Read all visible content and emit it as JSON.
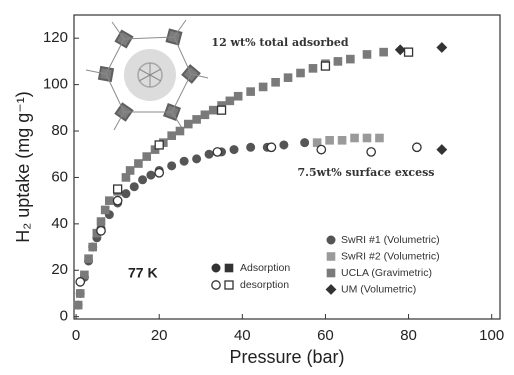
{
  "chart_data": {
    "type": "scatter",
    "xlabel": "Pressure (bar)",
    "ylabel": "H₂ uptake (mg g⁻¹)",
    "annotations": [
      "12 wt% total adsorbed",
      "7.5wt% surface excess",
      "77 K"
    ],
    "xlim": [
      -0.5,
      102
    ],
    "ylim": [
      -1,
      130
    ],
    "xticks": [
      0,
      20,
      40,
      60,
      80,
      100
    ],
    "yticks": [
      0,
      20,
      40,
      60,
      80,
      100,
      120
    ],
    "series": [
      {
        "name": "SwRI #1 (Volumetric)",
        "marker": "circle",
        "color": "#555555",
        "x": [
          0.5,
          1,
          2,
          3,
          4,
          5,
          6,
          8,
          10,
          12,
          14,
          16,
          18,
          20,
          23,
          26,
          29,
          32,
          35,
          38,
          42,
          46,
          50,
          55
        ],
        "values": [
          5,
          10,
          17,
          24,
          30,
          34,
          38,
          44,
          49,
          53,
          56,
          59,
          61,
          63,
          65,
          67,
          68,
          70,
          71,
          72,
          73,
          73,
          74,
          75
        ]
      },
      {
        "name": "SwRI #2 (Volumetric)",
        "marker": "square",
        "color": "#9a9a9a",
        "x": [
          58,
          61,
          64,
          67,
          70,
          73
        ],
        "values": [
          75,
          76,
          76,
          77,
          77,
          77
        ]
      },
      {
        "name": "UCLA (Gravimetric)",
        "marker": "square",
        "color": "#7a7a7a",
        "x": [
          0.5,
          1,
          2,
          3,
          4,
          5,
          6,
          7,
          8,
          10,
          12,
          13,
          15,
          17,
          19,
          21,
          23,
          25,
          27,
          29,
          31,
          33,
          35,
          37,
          39,
          42,
          45,
          48,
          51,
          54,
          57,
          60,
          63,
          66,
          70,
          74
        ],
        "values": [
          5,
          10,
          18,
          25,
          30,
          36,
          41,
          46,
          50,
          54,
          60,
          63,
          66,
          69,
          72,
          75,
          78,
          80,
          83,
          85,
          87,
          89,
          91,
          93,
          95,
          97,
          99,
          101,
          103,
          105,
          107,
          109,
          110,
          111,
          113,
          114
        ]
      },
      {
        "name": "UM (Volumetric)",
        "marker": "diamond",
        "color": "#333333",
        "x": [
          78,
          88,
          88
        ],
        "values": [
          115,
          116,
          72
        ]
      }
    ],
    "desorption": [
      {
        "marker": "circle",
        "color": "#333333",
        "x": [
          1,
          6,
          10,
          20,
          34,
          47,
          59,
          71,
          82
        ],
        "values": [
          15,
          37,
          50,
          62,
          71,
          73,
          72,
          71,
          73
        ]
      },
      {
        "marker": "square",
        "color": "#333333",
        "x": [
          10,
          20,
          35,
          60,
          80
        ],
        "values": [
          55,
          74,
          89,
          108,
          114
        ]
      }
    ],
    "marker_key": [
      {
        "label": "Adsorption",
        "filled": true
      },
      {
        "label": "desorption",
        "filled": false
      }
    ]
  }
}
